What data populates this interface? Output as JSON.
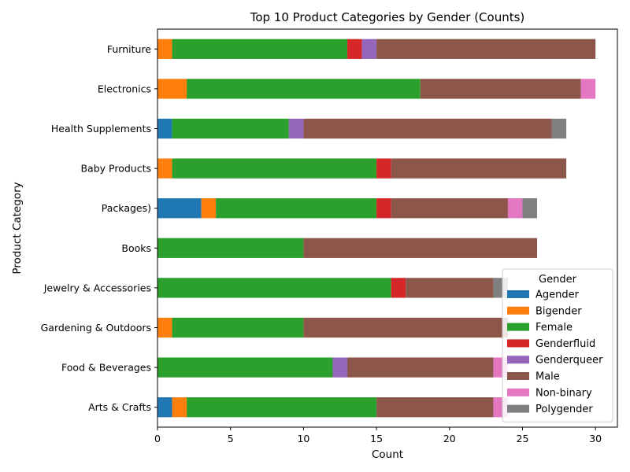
{
  "chart_data": {
    "type": "bar",
    "orientation": "horizontal",
    "stacked": true,
    "title": "Top 10 Product Categories by Gender (Counts)",
    "xlabel": "Count",
    "ylabel": "Product Category",
    "xlim": [
      0,
      31.5
    ],
    "xticks": [
      0,
      5,
      10,
      15,
      20,
      25,
      30
    ],
    "grid": false,
    "legend": {
      "title": "Gender",
      "placement": "bottom-right"
    },
    "categories": [
      "Furniture",
      "Electronics",
      "Health Supplements",
      "Baby Products",
      "Packages)",
      "Books",
      "Jewelry & Accessories",
      "Gardening & Outdoors",
      "Food & Beverages",
      "Arts & Crafts"
    ],
    "series": [
      {
        "name": "Agender",
        "color": "#1f77b4",
        "values": [
          0,
          0,
          1,
          0,
          3,
          0,
          0,
          0,
          0,
          1
        ]
      },
      {
        "name": "Bigender",
        "color": "#ff7f0e",
        "values": [
          1,
          2,
          0,
          1,
          1,
          0,
          0,
          1,
          0,
          1
        ]
      },
      {
        "name": "Female",
        "color": "#2ca02c",
        "values": [
          12,
          16,
          8,
          14,
          11,
          10,
          16,
          9,
          12,
          13
        ]
      },
      {
        "name": "Genderfluid",
        "color": "#d62728",
        "values": [
          1,
          0,
          0,
          1,
          1,
          0,
          1,
          0,
          0,
          0
        ]
      },
      {
        "name": "Genderqueer",
        "color": "#9467bd",
        "values": [
          1,
          0,
          1,
          0,
          0,
          0,
          0,
          0,
          1,
          0
        ]
      },
      {
        "name": "Male",
        "color": "#8c564b",
        "values": [
          15,
          11,
          17,
          12,
          8,
          16,
          6,
          14,
          10,
          8
        ]
      },
      {
        "name": "Non-binary",
        "color": "#e377c2",
        "values": [
          0,
          1,
          0,
          0,
          1,
          0,
          0,
          0,
          1,
          1
        ]
      },
      {
        "name": "Polygender",
        "color": "#7f7f7f",
        "values": [
          0,
          0,
          1,
          0,
          1,
          0,
          1,
          0,
          0,
          0
        ]
      }
    ]
  }
}
